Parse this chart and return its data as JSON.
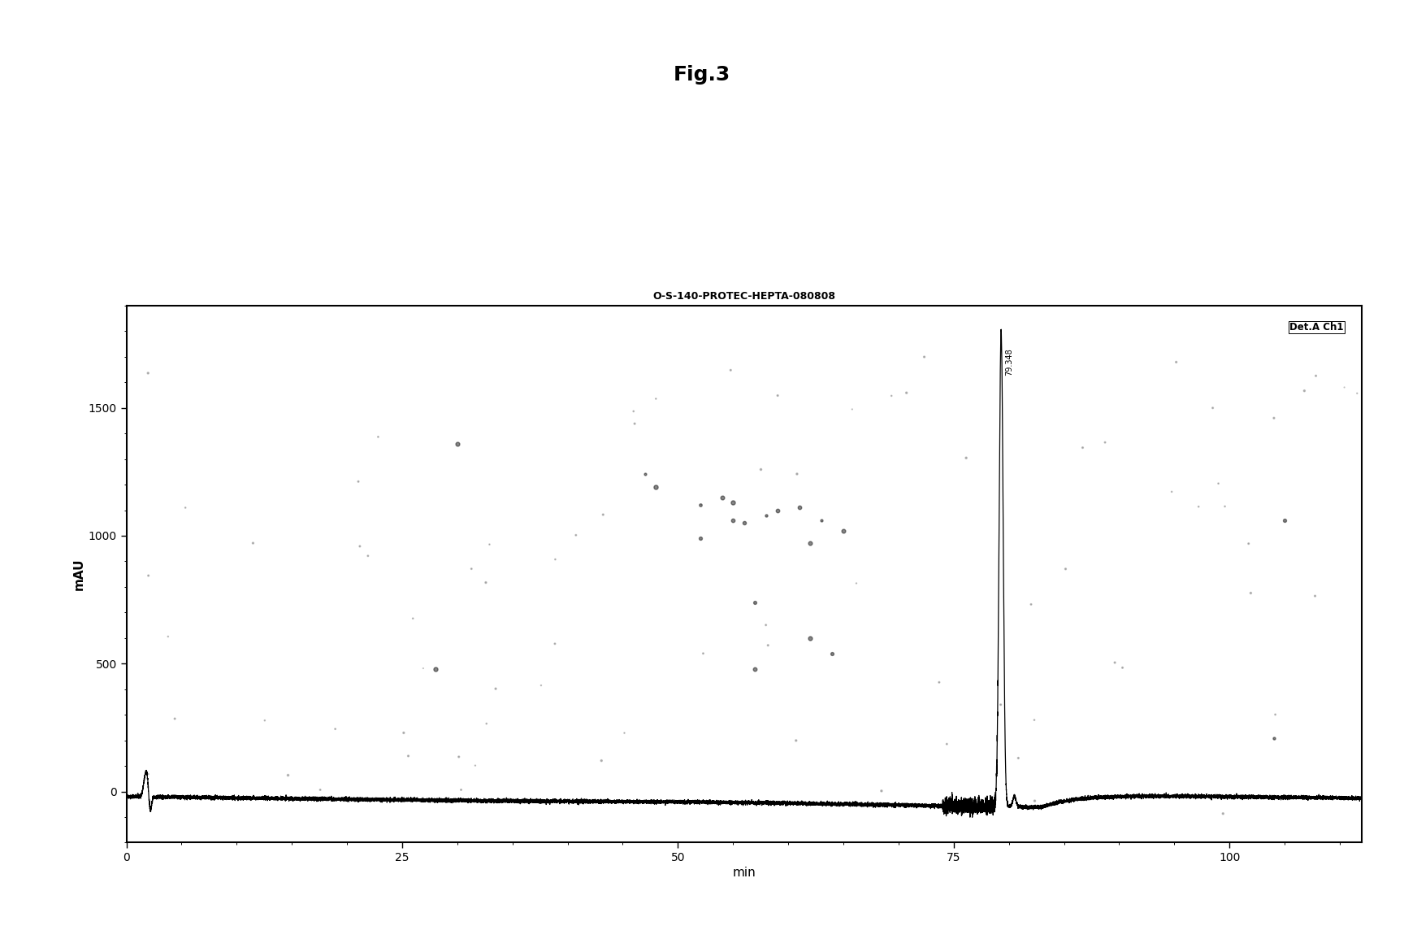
{
  "fig_title": "Fig.3",
  "chart_title": "O-S-140-PROTEC-HEPTA-080808",
  "detector_label": "Det.A Ch1",
  "ylabel": "mAU",
  "xlabel": "min",
  "xlim": [
    0,
    112
  ],
  "ylim": [
    -200,
    1900
  ],
  "yticks": [
    0,
    500,
    1000,
    1500
  ],
  "xticks": [
    0,
    25,
    50,
    75,
    100
  ],
  "main_peak_time": 79.3,
  "main_peak_height": 1800,
  "main_peak_label": "79.348",
  "small_peak_time": 2.0,
  "small_peak_height": 120,
  "background_color": "#ffffff",
  "plot_bg_color": "#ffffff",
  "line_color": "#000000",
  "border_color": "#000000",
  "noise_seed": 42,
  "fig_title_fontsize": 18,
  "chart_title_fontsize": 9,
  "axis_label_fontsize": 11,
  "tick_fontsize": 10
}
